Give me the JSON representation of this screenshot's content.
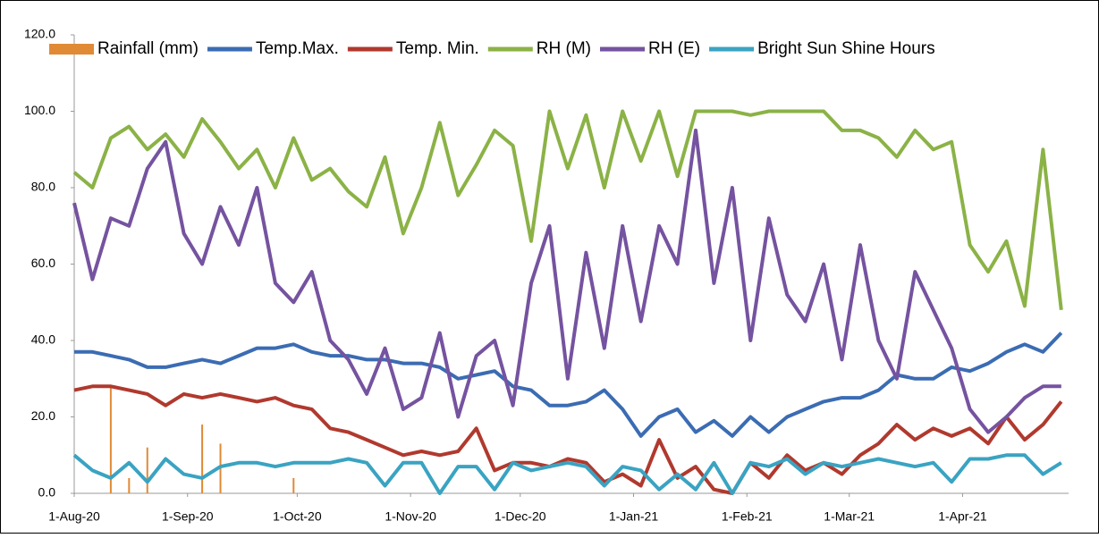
{
  "chart_data": {
    "type": "line",
    "x": [
      "2020-08-01",
      "2020-08-06",
      "2020-08-11",
      "2020-08-16",
      "2020-08-21",
      "2020-08-26",
      "2020-08-31",
      "2020-09-05",
      "2020-09-10",
      "2020-09-15",
      "2020-09-20",
      "2020-09-25",
      "2020-09-30",
      "2020-10-05",
      "2020-10-10",
      "2020-10-15",
      "2020-10-20",
      "2020-10-25",
      "2020-10-30",
      "2020-11-04",
      "2020-11-09",
      "2020-11-14",
      "2020-11-19",
      "2020-11-24",
      "2020-11-29",
      "2020-12-04",
      "2020-12-09",
      "2020-12-14",
      "2020-12-19",
      "2020-12-24",
      "2020-12-29",
      "2021-01-03",
      "2021-01-08",
      "2021-01-13",
      "2021-01-18",
      "2021-01-23",
      "2021-01-28",
      "2021-02-02",
      "2021-02-07",
      "2021-02-12",
      "2021-02-17",
      "2021-02-22",
      "2021-02-27",
      "2021-03-04",
      "2021-03-09",
      "2021-03-14",
      "2021-03-19",
      "2021-03-24",
      "2021-03-29",
      "2021-04-03",
      "2021-04-08",
      "2021-04-13",
      "2021-04-18",
      "2021-04-23",
      "2021-04-28"
    ],
    "xlim": [
      "2020-08-01",
      "2021-04-30"
    ],
    "xticks": [
      {
        "value": "2020-08-01",
        "label": "1-Aug-20"
      },
      {
        "value": "2020-09-01",
        "label": "1-Sep-20"
      },
      {
        "value": "2020-10-01",
        "label": "1-Oct-20"
      },
      {
        "value": "2020-11-01",
        "label": "1-Nov-20"
      },
      {
        "value": "2020-12-01",
        "label": "1-Dec-20"
      },
      {
        "value": "2021-01-01",
        "label": "1-Jan-21"
      },
      {
        "value": "2021-02-01",
        "label": "1-Feb-21"
      },
      {
        "value": "2021-03-01",
        "label": "1-Mar-21"
      },
      {
        "value": "2021-04-01",
        "label": "1-Apr-21"
      }
    ],
    "ylim": [
      0,
      120
    ],
    "yticks": [
      {
        "value": 0,
        "label": "0.0"
      },
      {
        "value": 20,
        "label": "20.0"
      },
      {
        "value": 40,
        "label": "40.0"
      },
      {
        "value": 60,
        "label": "60.0"
      },
      {
        "value": 80,
        "label": "80.0"
      },
      {
        "value": 100,
        "label": "100.0"
      },
      {
        "value": 120,
        "label": "120.0"
      }
    ],
    "series": [
      {
        "name": "Rainfall (mm)",
        "type": "bar",
        "color": "#e08a35",
        "values": [
          0,
          0,
          28,
          4,
          12,
          0,
          0,
          18,
          13,
          0,
          0,
          0,
          4,
          0,
          0,
          0,
          0,
          0,
          0,
          0,
          0,
          0,
          0,
          0,
          0,
          0,
          0,
          0,
          0,
          0,
          0,
          0,
          0,
          0,
          0,
          0,
          0,
          0,
          0,
          0,
          0,
          0,
          0,
          0,
          0,
          0,
          0,
          0,
          0,
          0,
          0,
          0,
          0,
          0,
          0
        ]
      },
      {
        "name": "Temp.Max.",
        "color": "#3b6cb3",
        "values": [
          37,
          37,
          36,
          35,
          33,
          33,
          34,
          35,
          34,
          36,
          38,
          38,
          39,
          37,
          36,
          36,
          35,
          35,
          34,
          34,
          33,
          30,
          31,
          32,
          28,
          27,
          23,
          23,
          24,
          27,
          22,
          15,
          20,
          22,
          16,
          19,
          15,
          20,
          16,
          20,
          22,
          24,
          25,
          25,
          27,
          31,
          30,
          30,
          33,
          32,
          34,
          37,
          39,
          37,
          42
        ]
      },
      {
        "name": "Temp. Min.",
        "color": "#b0392e",
        "values": [
          27,
          28,
          28,
          27,
          26,
          23,
          26,
          25,
          26,
          25,
          24,
          25,
          23,
          22,
          17,
          16,
          14,
          12,
          10,
          11,
          10,
          11,
          17,
          6,
          8,
          8,
          7,
          9,
          8,
          3,
          5,
          2,
          14,
          4,
          7,
          1,
          0,
          8,
          4,
          10,
          6,
          8,
          5,
          10,
          13,
          18,
          14,
          17,
          15,
          17,
          13,
          20,
          14,
          18,
          24
        ]
      },
      {
        "name": "RH (M)",
        "color": "#8bb246",
        "values": [
          84,
          80,
          93,
          96,
          90,
          94,
          88,
          98,
          92,
          85,
          90,
          80,
          93,
          82,
          85,
          79,
          75,
          88,
          68,
          80,
          97,
          78,
          86,
          95,
          91,
          66,
          100,
          85,
          99,
          80,
          100,
          87,
          100,
          83,
          100,
          100,
          100,
          99,
          100,
          100,
          100,
          100,
          95,
          95,
          93,
          88,
          95,
          90,
          92,
          65,
          58,
          66,
          49,
          90,
          48
        ]
      },
      {
        "name": "RH (E)",
        "color": "#7553a0",
        "values": [
          76,
          56,
          72,
          70,
          85,
          92,
          68,
          60,
          75,
          65,
          80,
          55,
          50,
          58,
          40,
          35,
          26,
          38,
          22,
          25,
          42,
          20,
          36,
          40,
          23,
          55,
          70,
          30,
          63,
          38,
          70,
          45,
          70,
          60,
          95,
          55,
          80,
          40,
          72,
          52,
          45,
          60,
          35,
          65,
          40,
          30,
          58,
          48,
          38,
          22,
          16,
          20,
          25,
          28,
          28
        ]
      },
      {
        "name": "Bright Sun Shine Hours",
        "color": "#3aa3c2",
        "values": [
          10,
          6,
          4,
          8,
          3,
          9,
          5,
          4,
          7,
          8,
          8,
          7,
          8,
          8,
          8,
          9,
          8,
          2,
          8,
          8,
          0,
          7,
          7,
          1,
          8,
          6,
          7,
          8,
          7,
          2,
          7,
          6,
          1,
          5,
          1,
          8,
          0,
          8,
          7,
          9,
          5,
          8,
          7,
          8,
          9,
          8,
          7,
          8,
          3,
          9,
          9,
          10,
          10,
          5,
          8
        ]
      }
    ]
  }
}
